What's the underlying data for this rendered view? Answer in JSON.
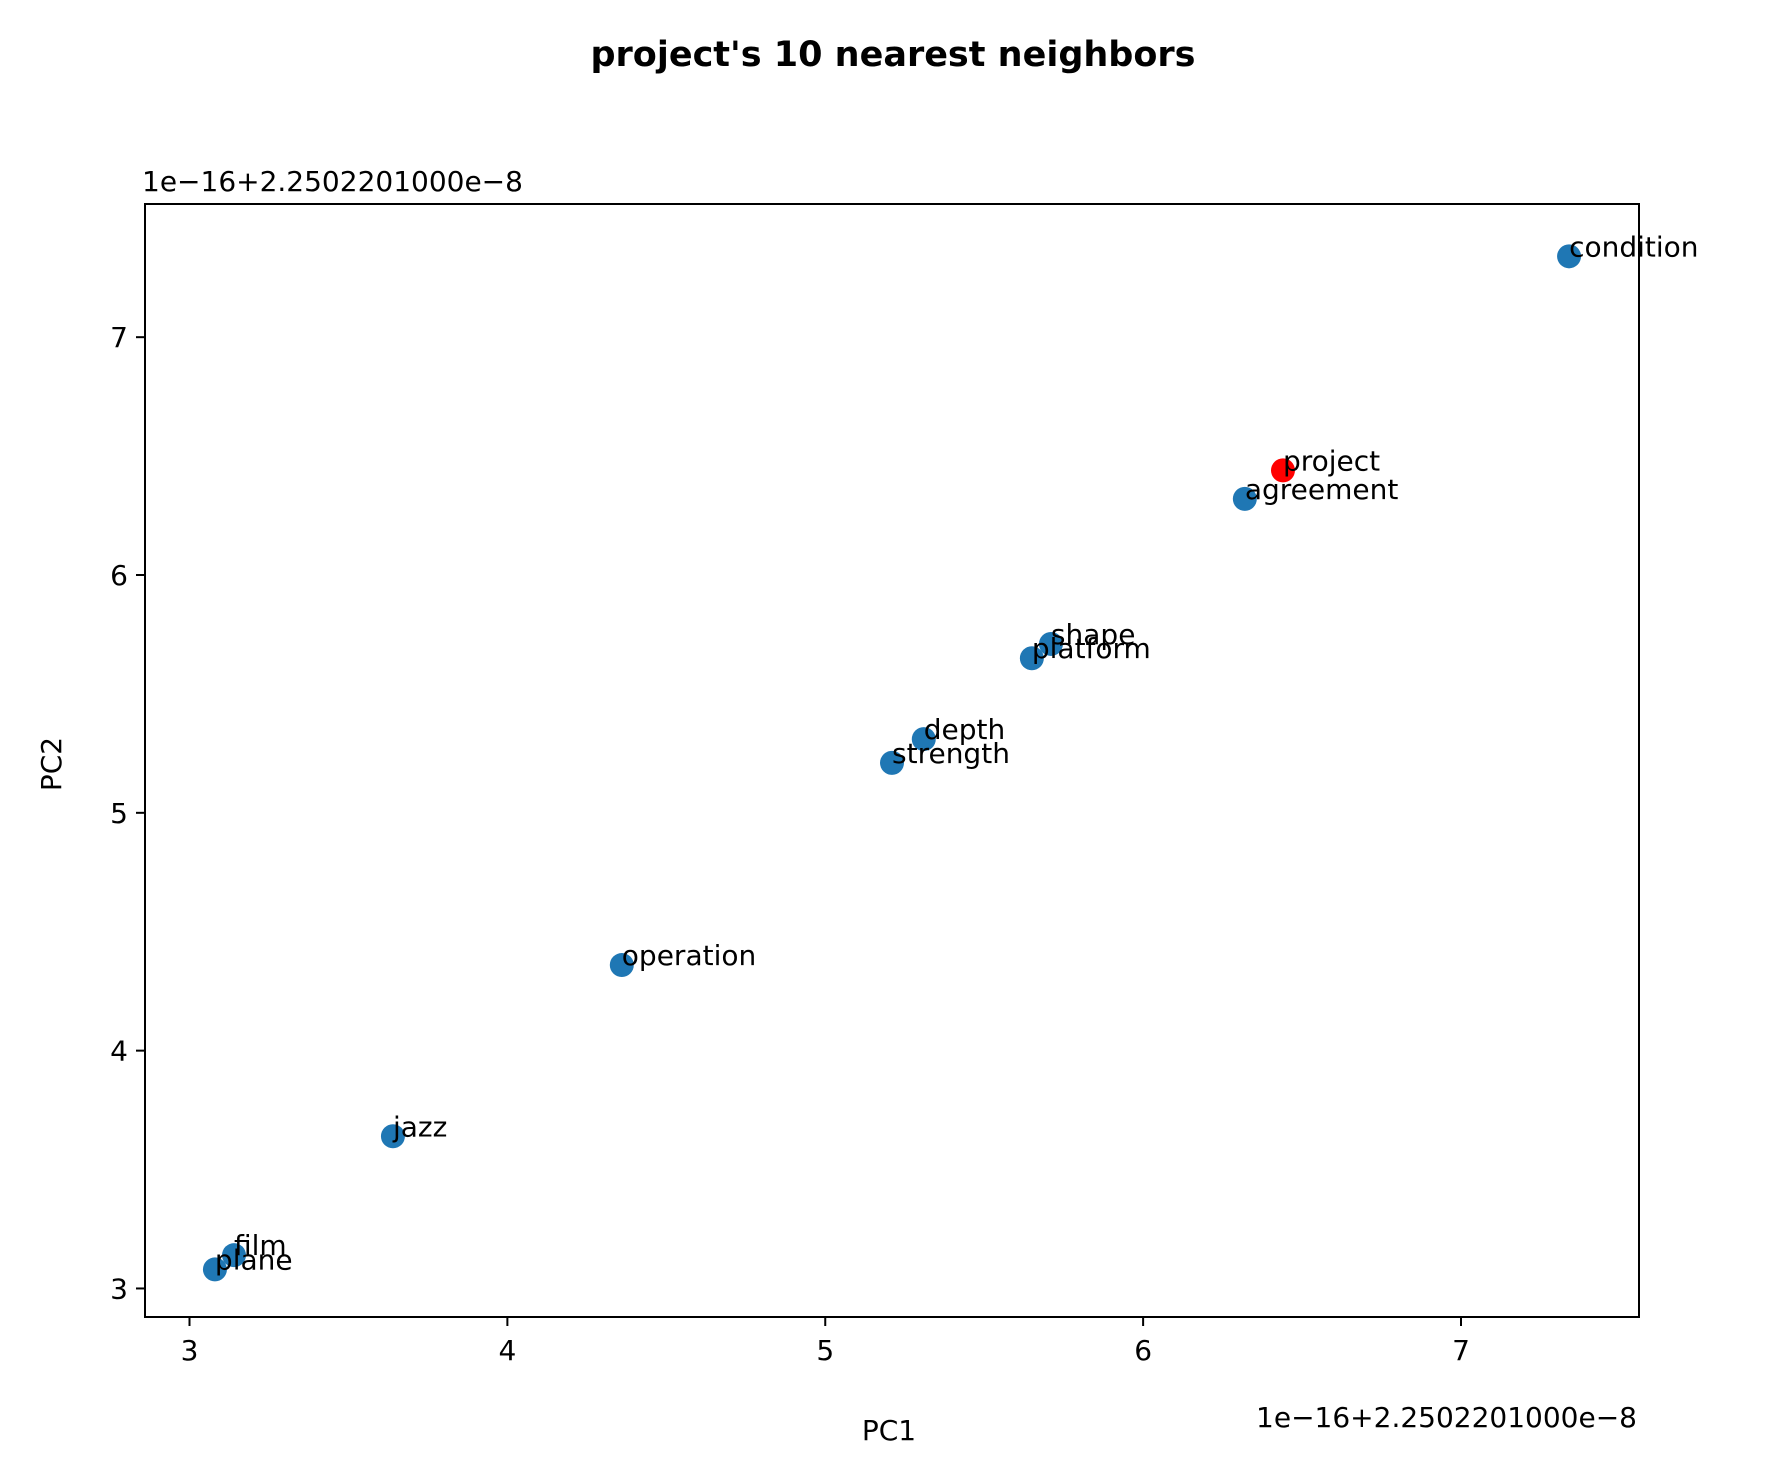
{
  "chart_data": {
    "type": "scatter",
    "title": "project's 10 nearest neighbors",
    "xlabel": "PC1",
    "ylabel": "PC2",
    "x_offset_text": "1e−16+2.2502201000e−8",
    "y_offset_text": "1e−16+2.2502201000e−8",
    "xlim": [
      2.86,
      7.56
    ],
    "ylim": [
      2.88,
      7.56
    ],
    "xticks": [
      3,
      4,
      5,
      6,
      7
    ],
    "yticks": [
      3,
      4,
      5,
      6,
      7
    ],
    "grid": false,
    "colors": {
      "neighbor": "#1f77b4",
      "query": "#ff0000"
    },
    "points": [
      {
        "label": "condition",
        "x": 7.34,
        "y": 7.34,
        "role": "neighbor"
      },
      {
        "label": "agreement",
        "x": 6.32,
        "y": 6.32,
        "role": "neighbor"
      },
      {
        "label": "shape",
        "x": 5.71,
        "y": 5.71,
        "role": "neighbor"
      },
      {
        "label": "platform",
        "x": 5.65,
        "y": 5.65,
        "role": "neighbor"
      },
      {
        "label": "depth",
        "x": 5.31,
        "y": 5.31,
        "role": "neighbor"
      },
      {
        "label": "strength",
        "x": 5.21,
        "y": 5.21,
        "role": "neighbor"
      },
      {
        "label": "operation",
        "x": 4.36,
        "y": 4.36,
        "role": "neighbor"
      },
      {
        "label": "jazz",
        "x": 3.64,
        "y": 3.64,
        "role": "neighbor"
      },
      {
        "label": "film",
        "x": 3.14,
        "y": 3.14,
        "role": "neighbor"
      },
      {
        "label": "plane",
        "x": 3.08,
        "y": 3.08,
        "role": "neighbor"
      },
      {
        "label": "project",
        "x": 6.44,
        "y": 6.44,
        "role": "query"
      }
    ]
  }
}
